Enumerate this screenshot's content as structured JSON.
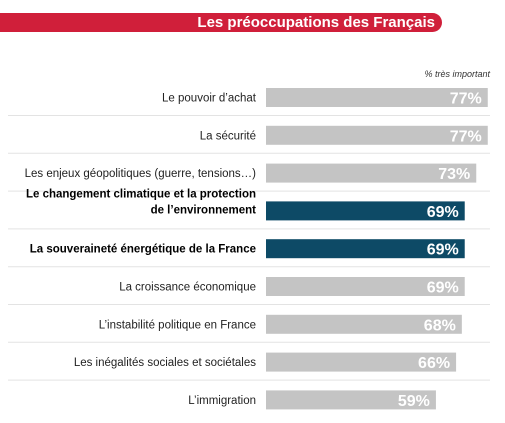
{
  "title": "Les préoccupations des Français",
  "chart_data": {
    "type": "bar",
    "orientation": "horizontal",
    "title": "Les préoccupations des Français",
    "legend_label": "% très important",
    "categories": [
      "Le pouvoir d’achat",
      "La sécurité",
      "Les enjeux géopolitiques (guerre, tensions…)",
      "Le changement climatique et la protection de l’environnement",
      "La souveraineté énergétique de la France",
      "La croissance économique",
      "L’instabilité politique en France",
      "Les inégalités sociales et sociétales",
      "L’immigration"
    ],
    "values": [
      77,
      77,
      73,
      69,
      69,
      69,
      68,
      66,
      59
    ],
    "value_labels": [
      "77%",
      "77%",
      "73%",
      "69%",
      "69%",
      "69%",
      "68%",
      "66%",
      "59%"
    ],
    "highlighted": [
      false,
      false,
      false,
      true,
      true,
      false,
      false,
      false,
      false
    ],
    "colors": {
      "default_bar": "#c4c4c4",
      "highlight_bar": "#0d4a66",
      "header": "#d01f3a"
    },
    "xlim": [
      0,
      100
    ],
    "grid": false
  }
}
